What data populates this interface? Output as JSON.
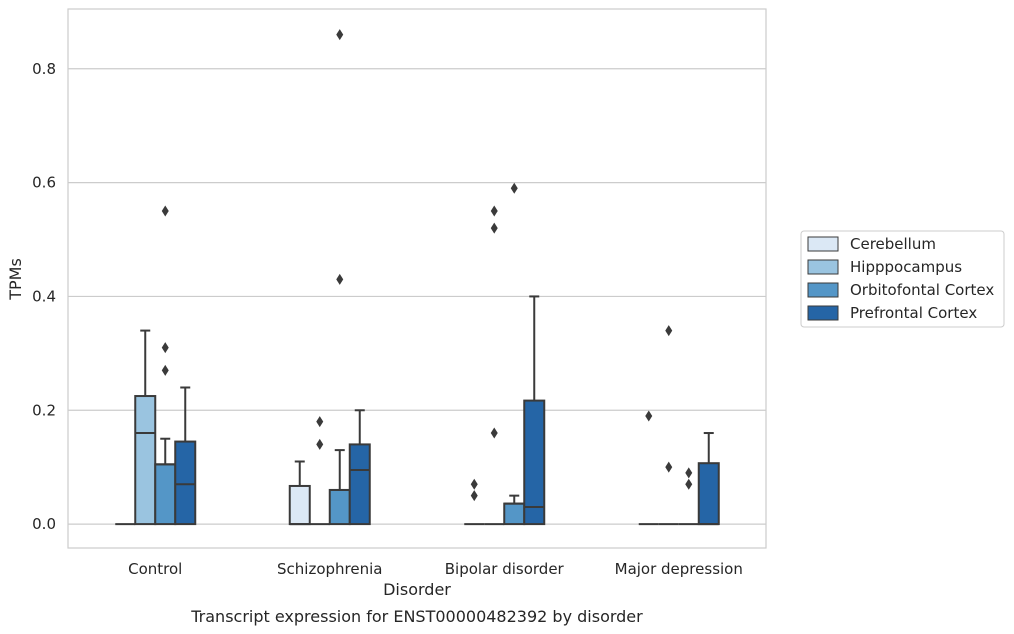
{
  "chart_data": {
    "type": "box",
    "caption": "Transcript expression for ENST00000482392 by disorder",
    "xlabel": "Disorder",
    "ylabel": "TPMs",
    "ylim": [
      -0.042,
      0.905
    ],
    "yticks": [
      0.0,
      0.2,
      0.4,
      0.6,
      0.8
    ],
    "ytick_labels": [
      "0.0",
      "0.2",
      "0.4",
      "0.6",
      "0.8"
    ],
    "categories": [
      "Control",
      "Schizophrenia",
      "Bipolar disorder",
      "Major depression"
    ],
    "grid": "horizontal",
    "legend_position": "right",
    "series": [
      {
        "name": "Cerebellum",
        "color": "#dbe8f5",
        "boxes": [
          {
            "whislo": 0.0,
            "q1": 0.0,
            "med": 0.0,
            "q3": 0.0,
            "whishi": 0.0,
            "fliers": []
          },
          {
            "whislo": 0.0,
            "q1": 0.0,
            "med": 0.0,
            "q3": 0.067,
            "whishi": 0.11,
            "fliers": []
          },
          {
            "whislo": 0.0,
            "q1": 0.0,
            "med": 0.0,
            "q3": 0.0,
            "whishi": 0.0,
            "fliers": [
              0.05,
              0.07
            ]
          },
          {
            "whislo": 0.0,
            "q1": 0.0,
            "med": 0.0,
            "q3": 0.0,
            "whishi": 0.0,
            "fliers": [
              0.19
            ]
          }
        ]
      },
      {
        "name": "Hipppocampus",
        "color": "#9ac4e0",
        "boxes": [
          {
            "whislo": 0.0,
            "q1": 0.0,
            "med": 0.16,
            "q3": 0.225,
            "whishi": 0.34,
            "fliers": []
          },
          {
            "whislo": 0.0,
            "q1": 0.0,
            "med": 0.0,
            "q3": 0.0,
            "whishi": 0.0,
            "fliers": [
              0.14,
              0.18
            ]
          },
          {
            "whislo": 0.0,
            "q1": 0.0,
            "med": 0.0,
            "q3": 0.0,
            "whishi": 0.0,
            "fliers": [
              0.16,
              0.52,
              0.55
            ]
          },
          {
            "whislo": 0.0,
            "q1": 0.0,
            "med": 0.0,
            "q3": 0.0,
            "whishi": 0.0,
            "fliers": [
              0.1,
              0.34
            ]
          }
        ]
      },
      {
        "name": "Orbitofontal Cortex",
        "color": "#5496c7",
        "boxes": [
          {
            "whislo": 0.0,
            "q1": 0.0,
            "med": 0.105,
            "q3": 0.105,
            "whishi": 0.15,
            "fliers": [
              0.27,
              0.31,
              0.55
            ]
          },
          {
            "whislo": 0.0,
            "q1": 0.0,
            "med": 0.06,
            "q3": 0.06,
            "whishi": 0.13,
            "fliers": [
              0.43,
              0.86
            ]
          },
          {
            "whislo": 0.0,
            "q1": 0.0,
            "med": 0.036,
            "q3": 0.036,
            "whishi": 0.05,
            "fliers": [
              0.59
            ]
          },
          {
            "whislo": 0.0,
            "q1": 0.0,
            "med": 0.0,
            "q3": 0.0,
            "whishi": 0.0,
            "fliers": [
              0.07,
              0.09
            ]
          }
        ]
      },
      {
        "name": "Prefrontal Cortex",
        "color": "#2565a6",
        "boxes": [
          {
            "whislo": 0.0,
            "q1": 0.0,
            "med": 0.07,
            "q3": 0.145,
            "whishi": 0.24,
            "fliers": []
          },
          {
            "whislo": 0.0,
            "q1": 0.0,
            "med": 0.095,
            "q3": 0.14,
            "whishi": 0.2,
            "fliers": []
          },
          {
            "whislo": 0.0,
            "q1": 0.0,
            "med": 0.03,
            "q3": 0.217,
            "whishi": 0.4,
            "fliers": []
          },
          {
            "whislo": 0.0,
            "q1": 0.0,
            "med": 0.0,
            "q3": 0.107,
            "whishi": 0.16,
            "fliers": []
          }
        ]
      }
    ]
  }
}
